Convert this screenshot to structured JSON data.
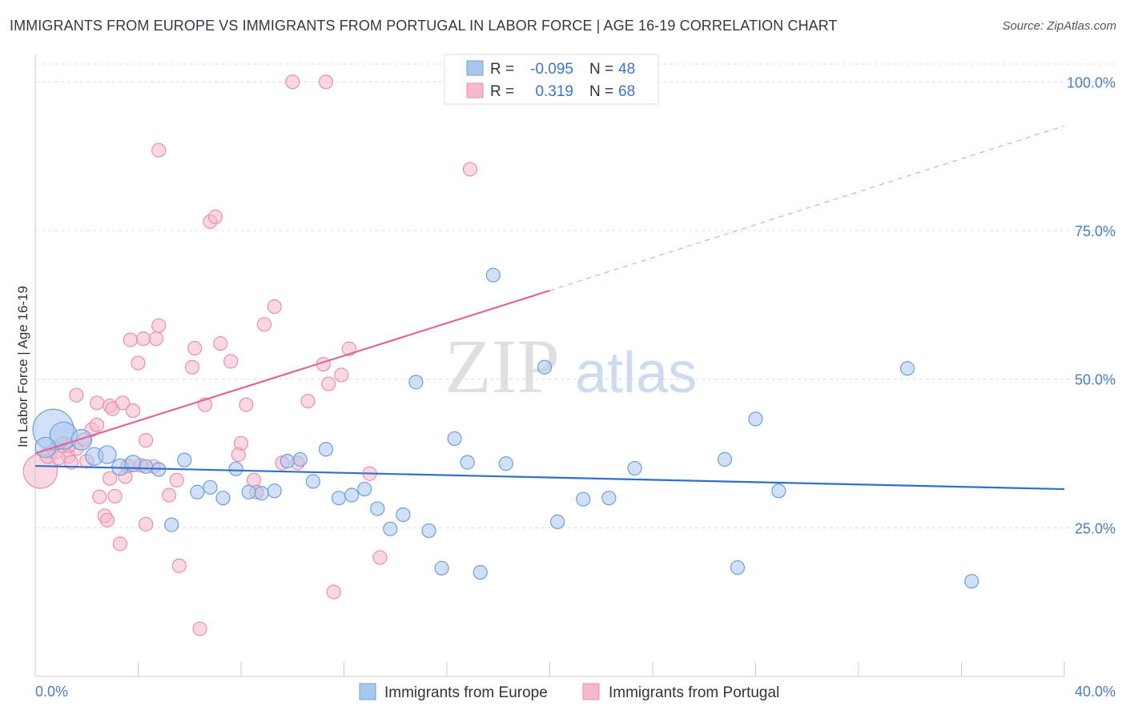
{
  "title": "IMMIGRANTS FROM EUROPE VS IMMIGRANTS FROM PORTUGAL IN LABOR FORCE | AGE 16-19 CORRELATION CHART",
  "source": "Source: ZipAtlas.com",
  "watermark": {
    "zip": "ZIP",
    "atlas": "atlas"
  },
  "colors": {
    "europe_fill": "#a9c6ef",
    "europe_stroke": "#6f9fd8",
    "europe_line": "#2f6fcf",
    "portugal_fill": "#f6b8cb",
    "portugal_stroke": "#ea8fae",
    "portugal_line": "#e06891",
    "tick_label": "#4a7cc8"
  },
  "legend": {
    "rows": [
      {
        "r_label": "R =",
        "r_value": "-0.095",
        "n_label": "N =",
        "n_value": "48"
      },
      {
        "r_label": "R =",
        "r_value": "0.319",
        "n_label": "N =",
        "n_value": "68"
      }
    ]
  },
  "bottom_legend": {
    "europe": "Immigrants from Europe",
    "portugal": "Immigrants from Portugal"
  },
  "chart_data": {
    "type": "scatter",
    "title": "IMMIGRANTS FROM EUROPE VS IMMIGRANTS FROM PORTUGAL IN LABOR FORCE | AGE 16-19 CORRELATION CHART",
    "xlabel": "",
    "ylabel": "In Labor Force | Age 16-19",
    "xlim": [
      0,
      40
    ],
    "ylim": [
      0,
      103
    ],
    "x_tick_labels": [
      "0.0%",
      "40.0%"
    ],
    "y_ticks": [
      25,
      50,
      75,
      100
    ],
    "y_tick_labels": [
      "25.0%",
      "50.0%",
      "75.0%",
      "100.0%"
    ],
    "grid": true,
    "legend_position": "top-center",
    "series": [
      {
        "name": "Immigrants from Europe",
        "r": -0.095,
        "n": 48,
        "trend": {
          "x0": 0,
          "y0": 35.4,
          "x1": 40,
          "y1": 31.5
        },
        "points": [
          [
            0.7,
            41.5,
            3
          ],
          [
            1.1,
            40.5,
            2
          ],
          [
            1.8,
            39.8,
            1.5
          ],
          [
            2.3,
            37.0,
            1.3
          ],
          [
            2.8,
            37.3,
            1.3
          ],
          [
            3.3,
            35.2,
            1.2
          ],
          [
            3.8,
            35.8,
            1.2
          ],
          [
            4.3,
            35.3,
            1
          ],
          [
            4.8,
            34.8,
            1
          ],
          [
            5.3,
            25.5,
            1
          ],
          [
            5.8,
            36.4,
            1
          ],
          [
            6.3,
            31.0,
            1
          ],
          [
            6.8,
            31.8,
            1
          ],
          [
            7.3,
            30.0,
            1
          ],
          [
            7.8,
            34.9,
            1
          ],
          [
            8.3,
            31.0,
            1
          ],
          [
            8.8,
            30.8,
            1
          ],
          [
            9.3,
            31.2,
            1
          ],
          [
            9.8,
            36.2,
            1
          ],
          [
            10.3,
            36.5,
            1
          ],
          [
            10.8,
            32.8,
            1
          ],
          [
            11.3,
            38.2,
            1
          ],
          [
            11.8,
            30.0,
            1
          ],
          [
            12.3,
            30.5,
            1
          ],
          [
            12.8,
            31.5,
            1
          ],
          [
            13.3,
            28.2,
            1
          ],
          [
            13.8,
            24.8,
            1
          ],
          [
            14.3,
            27.2,
            1
          ],
          [
            14.8,
            49.5,
            1
          ],
          [
            15.3,
            24.5,
            1
          ],
          [
            15.8,
            18.2,
            1
          ],
          [
            16.3,
            40.0,
            1
          ],
          [
            16.8,
            36.0,
            1
          ],
          [
            17.3,
            17.5,
            1
          ],
          [
            17.8,
            67.5,
            1
          ],
          [
            18.3,
            35.8,
            1
          ],
          [
            19.8,
            52.0,
            1
          ],
          [
            20.3,
            26.0,
            1
          ],
          [
            21.3,
            29.8,
            1
          ],
          [
            22.3,
            30.0,
            1
          ],
          [
            23.3,
            35.0,
            1
          ],
          [
            26.8,
            36.5,
            1
          ],
          [
            27.3,
            18.3,
            1
          ],
          [
            28.0,
            43.3,
            1
          ],
          [
            28.9,
            31.2,
            1
          ],
          [
            33.9,
            51.8,
            1
          ],
          [
            36.4,
            16.0,
            1
          ],
          [
            0.4,
            38.5,
            1.5
          ]
        ]
      },
      {
        "name": "Immigrants from Portugal",
        "r": 0.319,
        "n": 68,
        "trend": {
          "x0": 0,
          "y0": 37.5,
          "x1": 20,
          "y1": 64.9
        },
        "trend_extrapolated": {
          "x0": 20,
          "y0": 64.9,
          "x1": 40,
          "y1": 92.6
        },
        "points": [
          [
            0.2,
            34.5,
            2.5
          ],
          [
            0.5,
            37.2,
            1.2
          ],
          [
            0.8,
            38.0,
            1.2
          ],
          [
            1.1,
            39.0,
            1.2
          ],
          [
            1.3,
            37.0,
            1
          ],
          [
            1.6,
            38.3,
            1
          ],
          [
            1.9,
            39.8,
            1
          ],
          [
            2.2,
            41.5,
            1
          ],
          [
            1.6,
            47.3,
            1
          ],
          [
            1.4,
            36.0,
            1
          ],
          [
            2.0,
            36.2,
            1
          ],
          [
            2.4,
            42.3,
            1
          ],
          [
            2.5,
            30.2,
            1
          ],
          [
            2.7,
            27.0,
            1
          ],
          [
            2.4,
            46.0,
            1
          ],
          [
            2.9,
            45.5,
            1
          ],
          [
            2.8,
            26.3,
            1
          ],
          [
            2.9,
            33.3,
            1
          ],
          [
            3.0,
            45.0,
            1
          ],
          [
            3.1,
            30.3,
            1
          ],
          [
            3.5,
            33.6,
            1
          ],
          [
            3.3,
            22.3,
            1
          ],
          [
            3.4,
            46.0,
            1
          ],
          [
            3.6,
            35.4,
            1
          ],
          [
            3.7,
            56.6,
            1
          ],
          [
            3.8,
            44.7,
            1
          ],
          [
            4.0,
            52.7,
            1
          ],
          [
            4.2,
            56.8,
            1
          ],
          [
            4.1,
            35.5,
            1
          ],
          [
            4.3,
            39.7,
            1
          ],
          [
            4.3,
            25.6,
            1
          ],
          [
            4.6,
            35.3,
            1
          ],
          [
            4.7,
            56.8,
            1
          ],
          [
            4.8,
            59.0,
            1
          ],
          [
            4.8,
            88.5,
            1
          ],
          [
            5.2,
            30.5,
            1
          ],
          [
            5.5,
            33.0,
            1
          ],
          [
            5.6,
            18.6,
            1
          ],
          [
            6.1,
            52.0,
            1
          ],
          [
            6.2,
            55.2,
            1
          ],
          [
            6.6,
            45.7,
            1
          ],
          [
            6.8,
            76.5,
            1
          ],
          [
            7.0,
            77.3,
            1
          ],
          [
            7.2,
            56.0,
            1
          ],
          [
            7.6,
            53.0,
            1
          ],
          [
            7.9,
            37.3,
            1
          ],
          [
            8.0,
            39.2,
            1
          ],
          [
            6.4,
            8.0,
            1
          ],
          [
            8.2,
            45.7,
            1
          ],
          [
            8.5,
            33.0,
            1
          ],
          [
            8.6,
            31.0,
            1
          ],
          [
            8.9,
            59.2,
            1
          ],
          [
            9.3,
            62.2,
            1
          ],
          [
            9.6,
            35.9,
            1
          ],
          [
            10.0,
            100.0,
            1
          ],
          [
            10.2,
            35.9,
            1
          ],
          [
            10.6,
            46.3,
            1
          ],
          [
            11.2,
            52.5,
            1
          ],
          [
            11.4,
            49.2,
            1
          ],
          [
            11.6,
            14.2,
            1
          ],
          [
            11.9,
            50.7,
            1
          ],
          [
            12.2,
            55.1,
            1
          ],
          [
            13.0,
            34.1,
            1
          ],
          [
            13.4,
            20.0,
            1
          ],
          [
            11.3,
            100.0,
            1
          ],
          [
            16.9,
            85.3,
            1
          ],
          [
            1.3,
            38.8,
            1
          ],
          [
            0.9,
            36.7,
            1
          ]
        ]
      }
    ]
  }
}
